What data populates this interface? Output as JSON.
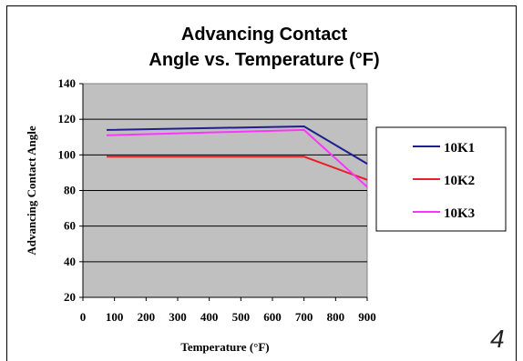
{
  "page": {
    "slide_number": "4"
  },
  "chart_data": {
    "type": "line",
    "title_lines": [
      "Advancing Contact",
      "Angle vs. Temperature (°F)"
    ],
    "xlabel": "Temperature (°F)",
    "ylabel": "Advancing Contact Angle",
    "xlim": [
      0,
      900
    ],
    "ylim": [
      20,
      140
    ],
    "x_ticks": [
      0,
      100,
      200,
      300,
      400,
      500,
      600,
      700,
      800,
      900
    ],
    "y_ticks": [
      20,
      40,
      60,
      80,
      100,
      120,
      140
    ],
    "grid": "horizontal",
    "plot_background": "#c0c0c0",
    "legend_position": "right",
    "series": [
      {
        "name": "10K1",
        "color": "#1f1f8f",
        "x": [
          75,
          700,
          900
        ],
        "y": [
          114,
          116,
          95
        ]
      },
      {
        "name": "10K2",
        "color": "#e8202a",
        "x": [
          75,
          700,
          900
        ],
        "y": [
          99,
          99,
          86
        ]
      },
      {
        "name": "10K3",
        "color": "#ff33ff",
        "x": [
          75,
          700,
          900
        ],
        "y": [
          111,
          114,
          82
        ]
      }
    ]
  }
}
